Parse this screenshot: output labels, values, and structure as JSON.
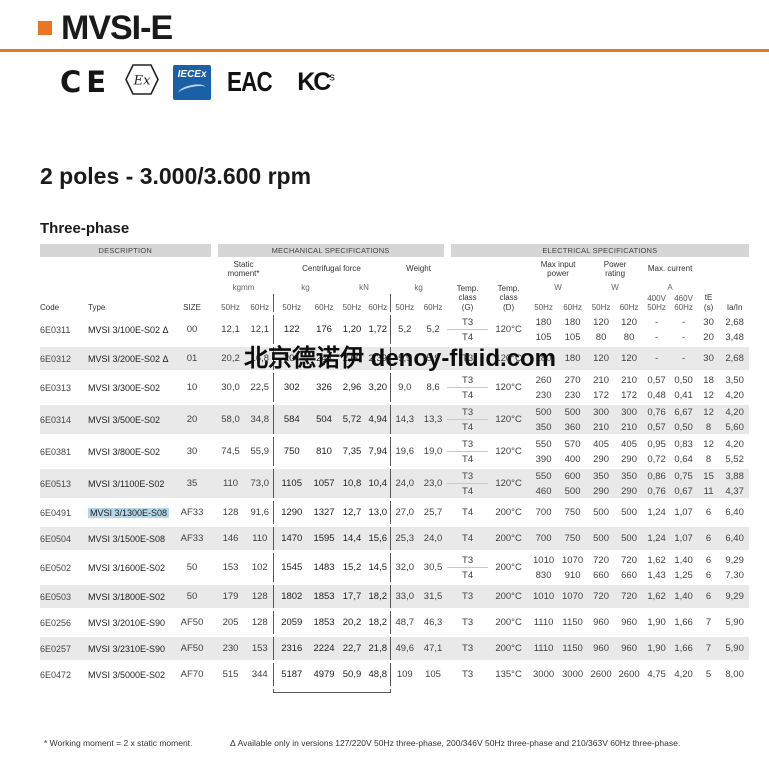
{
  "page": {
    "product": "MVSI-E",
    "title": "2 poles - 3.000/3.600 rpm",
    "subtitle": "Three-phase",
    "watermark": "北京德诺伊 denoy-fluid.com",
    "footnotes": {
      "working_moment": "* Working moment = 2 x static moment.",
      "delta": "Δ Available only in versions 127/220V 50Hz three-phase, 200/346V 50Hz three-phase and 210/363V 60Hz three-phase."
    },
    "colors": {
      "accent": "#e87622",
      "bar_bg": "#d6d6d6",
      "row_shade": "#e9e9e9",
      "highlight": "#b5d7ea",
      "iecex_blue": "#1b5fa6",
      "table_line": "#555555"
    }
  },
  "logos": {
    "ce": "CE",
    "ex": "Ex",
    "iecex": "IECEx",
    "eac": "EAC",
    "kc": "KC",
    "kc_s": "s"
  },
  "table": {
    "bars": [
      "DESCRIPTION",
      "MECHANICAL SPECIFICATIONS",
      "ELECTRICAL SPECIFICATIONS"
    ],
    "groups": {
      "static": "Static\nmoment*",
      "cf": "Centrifugal force",
      "weight": "Weight",
      "max_input": "Max input\npower",
      "power_rating": "Power\nrating",
      "max_current": "Max. current"
    },
    "units": {
      "static": "kgmm",
      "cf_kg": "kg",
      "cf_kn": "kN",
      "weight": "kg",
      "w": "W",
      "a": "A"
    },
    "cols": {
      "code": "Code",
      "type": "Type",
      "size": "SIZE",
      "hz50": "50Hz",
      "hz60": "60Hz",
      "temp_g": "Temp.\nclass\n(G)",
      "temp_d": "Temp.\nclass\n(D)",
      "v400": "400V\n50Hz",
      "v460": "460V\n60Hz",
      "te": "tE\n(s)",
      "iain": "Ia/In"
    },
    "rows": [
      {
        "code": "6E0311",
        "type": "MVSI 3/100E-S02",
        "suffix": " Δ",
        "size": "00",
        "shade": false,
        "highlight": false,
        "static": [
          "12,1",
          "12,1"
        ],
        "cf_kg": [
          "122",
          "176"
        ],
        "cf_kn": [
          "1,20",
          "1,72"
        ],
        "weight": [
          "5,2",
          "5,2"
        ],
        "temp_d": "120°C",
        "subs": [
          {
            "g": "T3",
            "w": [
              "180",
              "180"
            ],
            "p": [
              "120",
              "120"
            ],
            "a": [
              "-",
              "-"
            ],
            "te": "30",
            "iain": "2,68"
          },
          {
            "g": "T4",
            "w": [
              "105",
              "105"
            ],
            "p": [
              "80",
              "80"
            ],
            "a": [
              "-",
              "-"
            ],
            "te": "20",
            "iain": "3,48"
          }
        ]
      },
      {
        "code": "6E0312",
        "type": "MVSI 3/200E-S02",
        "suffix": " Δ",
        "size": "01",
        "shade": true,
        "highlight": false,
        "static": [
          "20,2",
          "16,8"
        ],
        "cf_kg": [
          "204",
          "244"
        ],
        "cf_kn": [
          "2,00",
          "2,39"
        ],
        "weight": [
          "5,9",
          "5,9"
        ],
        "temp_d": "120°C",
        "subs": [
          {
            "g": "T3",
            "w": [
              "180",
              "180"
            ],
            "p": [
              "120",
              "120"
            ],
            "a": [
              "-",
              "-"
            ],
            "te": "30",
            "iain": "2,68"
          }
        ]
      },
      {
        "code": "6E0313",
        "type": "MVSI 3/300E-S02",
        "suffix": "",
        "size": "10",
        "shade": false,
        "highlight": false,
        "static": [
          "30,0",
          "22,5"
        ],
        "cf_kg": [
          "302",
          "326"
        ],
        "cf_kn": [
          "2,96",
          "3,20"
        ],
        "weight": [
          "9,0",
          "8,6"
        ],
        "temp_d": "120°C",
        "subs": [
          {
            "g": "T3",
            "w": [
              "260",
              "270"
            ],
            "p": [
              "210",
              "210"
            ],
            "a": [
              "0,57",
              "0,50"
            ],
            "te": "18",
            "iain": "3,50"
          },
          {
            "g": "T4",
            "w": [
              "230",
              "230"
            ],
            "p": [
              "172",
              "172"
            ],
            "a": [
              "0,48",
              "0,41"
            ],
            "te": "12",
            "iain": "4,20"
          }
        ]
      },
      {
        "code": "6E0314",
        "type": "MVSI 3/500E-S02",
        "suffix": "",
        "size": "20",
        "shade": true,
        "highlight": false,
        "static": [
          "58,0",
          "34,8"
        ],
        "cf_kg": [
          "584",
          "504"
        ],
        "cf_kn": [
          "5,72",
          "4,94"
        ],
        "weight": [
          "14,3",
          "13,3"
        ],
        "temp_d": "120°C",
        "subs": [
          {
            "g": "T3",
            "w": [
              "500",
              "500"
            ],
            "p": [
              "300",
              "300"
            ],
            "a": [
              "0,76",
              "6,67"
            ],
            "te": "12",
            "iain": "4,20"
          },
          {
            "g": "T4",
            "w": [
              "350",
              "360"
            ],
            "p": [
              "210",
              "210"
            ],
            "a": [
              "0,57",
              "0,50"
            ],
            "te": "8",
            "iain": "5,60"
          }
        ]
      },
      {
        "code": "6E0381",
        "type": "MVSI 3/800E-S02",
        "suffix": "",
        "size": "30",
        "shade": false,
        "highlight": false,
        "static": [
          "74,5",
          "55,9"
        ],
        "cf_kg": [
          "750",
          "810"
        ],
        "cf_kn": [
          "7,35",
          "7,94"
        ],
        "weight": [
          "19,6",
          "19,0"
        ],
        "temp_d": "120°C",
        "subs": [
          {
            "g": "T3",
            "w": [
              "550",
              "570"
            ],
            "p": [
              "405",
              "405"
            ],
            "a": [
              "0,95",
              "0,83"
            ],
            "te": "12",
            "iain": "4,20"
          },
          {
            "g": "T4",
            "w": [
              "390",
              "400"
            ],
            "p": [
              "290",
              "290"
            ],
            "a": [
              "0,72",
              "0,64"
            ],
            "te": "8",
            "iain": "5,52"
          }
        ]
      },
      {
        "code": "6E0513",
        "type": "MVSI 3/1100E-S02",
        "suffix": "",
        "size": "35",
        "shade": true,
        "highlight": false,
        "static": [
          "110",
          "73,0"
        ],
        "cf_kg": [
          "1105",
          "1057"
        ],
        "cf_kn": [
          "10,8",
          "10,4"
        ],
        "weight": [
          "24,0",
          "23,0"
        ],
        "temp_d": "120°C",
        "subs": [
          {
            "g": "T3",
            "w": [
              "550",
              "600"
            ],
            "p": [
              "350",
              "350"
            ],
            "a": [
              "0,86",
              "0,75"
            ],
            "te": "15",
            "iain": "3,88"
          },
          {
            "g": "T4",
            "w": [
              "460",
              "500"
            ],
            "p": [
              "290",
              "290"
            ],
            "a": [
              "0,76",
              "0,67"
            ],
            "te": "11",
            "iain": "4,37"
          }
        ]
      },
      {
        "code": "6E0491",
        "type": "MVSI 3/1300E-S08",
        "suffix": "",
        "size": "AF33",
        "shade": false,
        "highlight": true,
        "static": [
          "128",
          "91,6"
        ],
        "cf_kg": [
          "1290",
          "1327"
        ],
        "cf_kn": [
          "12,7",
          "13,0"
        ],
        "weight": [
          "27,0",
          "25,7"
        ],
        "temp_d": "200°C",
        "subs": [
          {
            "g": "T4",
            "w": [
              "700",
              "750"
            ],
            "p": [
              "500",
              "500"
            ],
            "a": [
              "1,24",
              "1,07"
            ],
            "te": "6",
            "iain": "6,40"
          }
        ]
      },
      {
        "code": "6E0504",
        "type": "MVSI 3/1500E-S08",
        "suffix": "",
        "size": "AF33",
        "shade": true,
        "highlight": false,
        "static": [
          "146",
          "110"
        ],
        "cf_kg": [
          "1470",
          "1595"
        ],
        "cf_kn": [
          "14,4",
          "15,6"
        ],
        "weight": [
          "25,3",
          "24,0"
        ],
        "temp_d": "200°C",
        "subs": [
          {
            "g": "T4",
            "w": [
              "700",
              "750"
            ],
            "p": [
              "500",
              "500"
            ],
            "a": [
              "1,24",
              "1,07"
            ],
            "te": "6",
            "iain": "6,40"
          }
        ]
      },
      {
        "code": "6E0502",
        "type": "MVSI 3/1600E-S02",
        "suffix": "",
        "size": "50",
        "shade": false,
        "highlight": false,
        "static": [
          "153",
          "102"
        ],
        "cf_kg": [
          "1545",
          "1483"
        ],
        "cf_kn": [
          "15,2",
          "14,5"
        ],
        "weight": [
          "32,0",
          "30,5"
        ],
        "temp_d": "200°C",
        "subs": [
          {
            "g": "T3",
            "w": [
              "1010",
              "1070"
            ],
            "p": [
              "720",
              "720"
            ],
            "a": [
              "1,62",
              "1,40"
            ],
            "te": "6",
            "iain": "9,29"
          },
          {
            "g": "T4",
            "w": [
              "830",
              "910"
            ],
            "p": [
              "660",
              "660"
            ],
            "a": [
              "1,43",
              "1,25"
            ],
            "te": "6",
            "iain": "7,30"
          }
        ]
      },
      {
        "code": "6E0503",
        "type": "MVSI 3/1800E-S02",
        "suffix": "",
        "size": "50",
        "shade": true,
        "highlight": false,
        "static": [
          "179",
          "128"
        ],
        "cf_kg": [
          "1802",
          "1853"
        ],
        "cf_kn": [
          "17,7",
          "18,2"
        ],
        "weight": [
          "33,0",
          "31,5"
        ],
        "temp_d": "200°C",
        "subs": [
          {
            "g": "T3",
            "w": [
              "1010",
              "1070"
            ],
            "p": [
              "720",
              "720"
            ],
            "a": [
              "1,62",
              "1,40"
            ],
            "te": "6",
            "iain": "9,29"
          }
        ]
      },
      {
        "code": "6E0256",
        "type": "MVSI 3/2010E-S90",
        "suffix": "",
        "size": "AF50",
        "shade": false,
        "highlight": false,
        "static": [
          "205",
          "128"
        ],
        "cf_kg": [
          "2059",
          "1853"
        ],
        "cf_kn": [
          "20,2",
          "18,2"
        ],
        "weight": [
          "48,7",
          "46,3"
        ],
        "temp_d": "200°C",
        "subs": [
          {
            "g": "T3",
            "w": [
              "1110",
              "1150"
            ],
            "p": [
              "960",
              "960"
            ],
            "a": [
              "1,90",
              "1,66"
            ],
            "te": "7",
            "iain": "5,90"
          }
        ]
      },
      {
        "code": "6E0257",
        "type": "MVSI 3/2310E-S90",
        "suffix": "",
        "size": "AF50",
        "shade": true,
        "highlight": false,
        "static": [
          "230",
          "153"
        ],
        "cf_kg": [
          "2316",
          "2224"
        ],
        "cf_kn": [
          "22,7",
          "21,8"
        ],
        "weight": [
          "49,6",
          "47,1"
        ],
        "temp_d": "200°C",
        "subs": [
          {
            "g": "T3",
            "w": [
              "1110",
              "1150"
            ],
            "p": [
              "960",
              "960"
            ],
            "a": [
              "1,90",
              "1,66"
            ],
            "te": "7",
            "iain": "5,90"
          }
        ]
      },
      {
        "code": "6E0472",
        "type": "MVSI 3/5000E-S02",
        "suffix": "",
        "size": "AF70",
        "shade": false,
        "highlight": false,
        "static": [
          "515",
          "344"
        ],
        "cf_kg": [
          "5187",
          "4979"
        ],
        "cf_kn": [
          "50,9",
          "48,8"
        ],
        "weight": [
          "109",
          "105"
        ],
        "temp_d": "135°C",
        "subs": [
          {
            "g": "T3",
            "w": [
              "3000",
              "3000"
            ],
            "p": [
              "2600",
              "2600"
            ],
            "a": [
              "4,75",
              "4,20"
            ],
            "te": "5",
            "iain": "8,00"
          }
        ]
      }
    ]
  }
}
